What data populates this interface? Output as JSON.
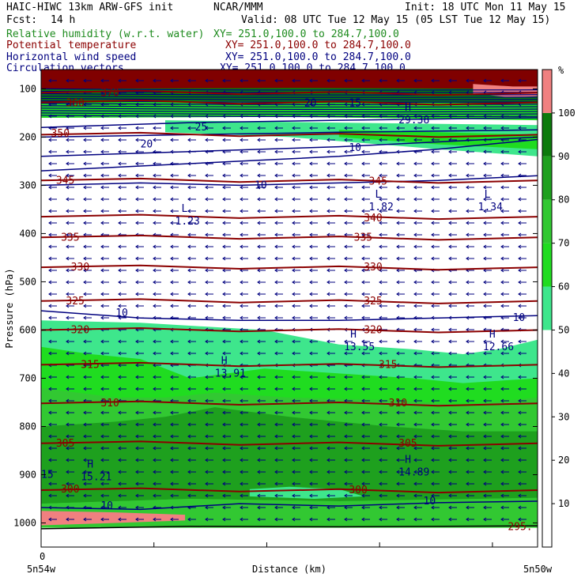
{
  "header": {
    "title": "HAIC-HIWC 13km ARW-GFS init",
    "center": "NCAR/MMM",
    "init": "Init: 18 UTC Mon 11 May 15",
    "fcst_label": "Fcst:",
    "fcst_value": "14 h",
    "valid": "Valid: 08 UTC Tue 12 May 15 (05 LST Tue 12 May 15)"
  },
  "fields": [
    {
      "name": "Relative humidity (w.r.t. water)",
      "xy": "XY= 251.0,100.0 to 284.7,100.0",
      "color": "#1e8b1e"
    },
    {
      "name": "Potential temperature",
      "xy": "XY= 251.0,100.0 to 284.7,100.0",
      "color": "#8b0000"
    },
    {
      "name": "Horizontal wind speed",
      "xy": "XY= 251.0,100.0 to 284.7,100.0",
      "color": "#00007f"
    },
    {
      "name": "Circulation vectors",
      "xy": "XY= 251.0,100.0 to 284.7,100.0",
      "color": "#00007f"
    }
  ],
  "chart_data": {
    "type": "heatmap",
    "ylabel": "Pressure (hPa)",
    "xlabel": "Distance (km)",
    "x_left_label": "5n54w",
    "x_right_label": "5n50w",
    "x_origin_label": "0",
    "y_ticks": [
      100,
      200,
      300,
      400,
      500,
      600,
      700,
      800,
      900,
      1000
    ],
    "ylim": [
      60,
      1050
    ],
    "colorbar": {
      "unit": "%",
      "ticks": [
        10,
        20,
        30,
        40,
        50,
        60,
        70,
        80,
        90,
        100
      ],
      "levels": [
        {
          "from": 0,
          "to": 50,
          "color": "#ffffff"
        },
        {
          "from": 50,
          "to": 60,
          "color": "#3ee68c"
        },
        {
          "from": 60,
          "to": 70,
          "color": "#20dc20"
        },
        {
          "from": 70,
          "to": 80,
          "color": "#32c832"
        },
        {
          "from": 80,
          "to": 90,
          "color": "#1ea01e"
        },
        {
          "from": 90,
          "to": 100,
          "color": "#0c7a0c"
        },
        {
          "from": 100,
          "to": 110,
          "color": "#f08080"
        }
      ]
    },
    "theta_contours": [
      {
        "value": 300,
        "p": 932
      },
      {
        "value": 305,
        "p": 835
      },
      {
        "value": 310,
        "p": 752
      },
      {
        "value": 315,
        "p": 672
      },
      {
        "value": 320,
        "p": 600
      },
      {
        "value": 325,
        "p": 540
      },
      {
        "value": 330,
        "p": 470
      },
      {
        "value": 335,
        "p": 408
      },
      {
        "value": 340,
        "p": 365
      },
      {
        "value": 345,
        "p": 290
      },
      {
        "value": 350,
        "p": 195
      },
      {
        "value": 360,
        "p": 128
      },
      {
        "value": 370,
        "p": 108
      }
    ],
    "theta_labels": [
      "300",
      "305",
      "310",
      "315",
      "320",
      "325",
      "330",
      "335",
      "340",
      "345",
      "350",
      "360",
      "370"
    ],
    "speed_labels": [
      "10",
      "10",
      "10",
      "10",
      "15",
      "15",
      "20",
      "20",
      "25",
      "10",
      "10"
    ],
    "extrema": [
      {
        "type": "L",
        "value": "1.23"
      },
      {
        "type": "L",
        "value": "1.82"
      },
      {
        "type": "L",
        "value": "1.34"
      },
      {
        "type": "H",
        "value": "13.91"
      },
      {
        "type": "H",
        "value": "13.55"
      },
      {
        "type": "H",
        "value": "12.66"
      },
      {
        "type": "H",
        "value": "15.21"
      },
      {
        "type": "H",
        "value": "14.89"
      },
      {
        "type": "H",
        "value": "29.38"
      }
    ],
    "bottom_label": "295."
  }
}
